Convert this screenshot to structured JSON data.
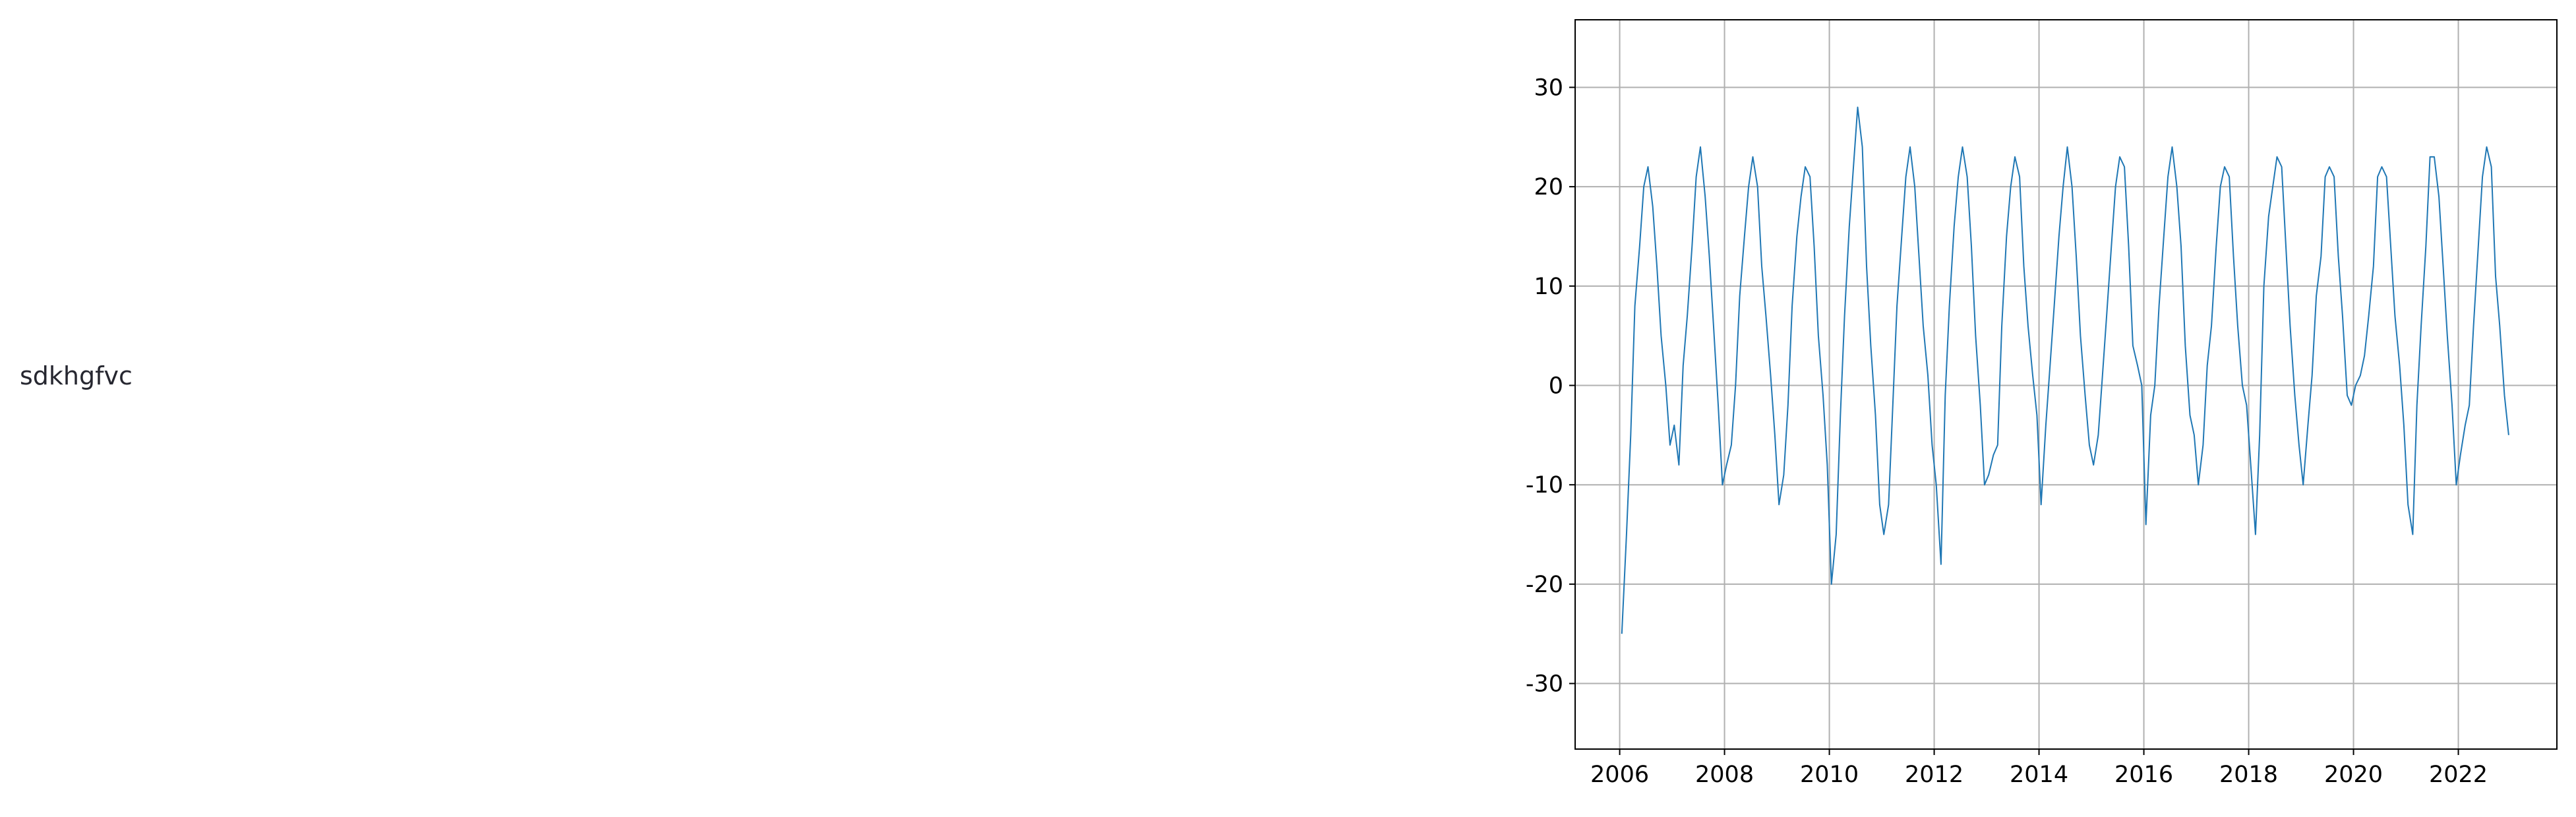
{
  "text": "sdkhgfvc",
  "chart_data": {
    "type": "line",
    "x": [
      2006.04,
      2006.13,
      2006.21,
      2006.29,
      2006.38,
      2006.46,
      2006.54,
      2006.63,
      2006.71,
      2006.79,
      2006.88,
      2006.96,
      2007.04,
      2007.13,
      2007.21,
      2007.29,
      2007.38,
      2007.46,
      2007.54,
      2007.63,
      2007.71,
      2007.79,
      2007.88,
      2007.96,
      2008.04,
      2008.13,
      2008.21,
      2008.29,
      2008.38,
      2008.46,
      2008.54,
      2008.63,
      2008.71,
      2008.79,
      2008.88,
      2008.96,
      2009.04,
      2009.13,
      2009.21,
      2009.29,
      2009.38,
      2009.46,
      2009.54,
      2009.63,
      2009.71,
      2009.79,
      2009.88,
      2009.96,
      2010.04,
      2010.13,
      2010.21,
      2010.29,
      2010.38,
      2010.46,
      2010.54,
      2010.63,
      2010.71,
      2010.79,
      2010.88,
      2010.96,
      2011.04,
      2011.13,
      2011.21,
      2011.29,
      2011.38,
      2011.46,
      2011.54,
      2011.63,
      2011.71,
      2011.79,
      2011.88,
      2011.96,
      2012.04,
      2012.13,
      2012.21,
      2012.29,
      2012.38,
      2012.46,
      2012.54,
      2012.63,
      2012.71,
      2012.79,
      2012.88,
      2012.96,
      2013.04,
      2013.13,
      2013.21,
      2013.29,
      2013.38,
      2013.46,
      2013.54,
      2013.63,
      2013.71,
      2013.79,
      2013.88,
      2013.96,
      2014.04,
      2014.13,
      2014.21,
      2014.29,
      2014.38,
      2014.46,
      2014.54,
      2014.63,
      2014.71,
      2014.79,
      2014.88,
      2014.96,
      2015.04,
      2015.13,
      2015.21,
      2015.29,
      2015.38,
      2015.46,
      2015.54,
      2015.63,
      2015.71,
      2015.79,
      2015.88,
      2015.96,
      2016.04,
      2016.13,
      2016.21,
      2016.29,
      2016.38,
      2016.46,
      2016.54,
      2016.63,
      2016.71,
      2016.79,
      2016.88,
      2016.96,
      2017.04,
      2017.13,
      2017.21,
      2017.29,
      2017.38,
      2017.46,
      2017.54,
      2017.63,
      2017.71,
      2017.79,
      2017.88,
      2017.96,
      2018.04,
      2018.13,
      2018.21,
      2018.29,
      2018.38,
      2018.46,
      2018.54,
      2018.63,
      2018.71,
      2018.79,
      2018.88,
      2018.96,
      2019.04,
      2019.13,
      2019.21,
      2019.29,
      2019.38,
      2019.46,
      2019.54,
      2019.63,
      2019.71,
      2019.79,
      2019.88,
      2019.96,
      2020.04,
      2020.13,
      2020.21,
      2020.29,
      2020.38,
      2020.46,
      2020.54,
      2020.63,
      2020.71,
      2020.79,
      2020.88,
      2020.96,
      2021.04,
      2021.13,
      2021.21,
      2021.29,
      2021.38,
      2021.46,
      2021.54,
      2021.63,
      2021.71,
      2021.79,
      2021.88,
      2021.96,
      2022.04,
      2022.13,
      2022.21,
      2022.29,
      2022.38,
      2022.46,
      2022.54,
      2022.63,
      2022.71,
      2022.79,
      2022.88,
      2022.96
    ],
    "series": [
      {
        "color": "#1f77b4",
        "values": [
          -25,
          -15,
          -5,
          8,
          14,
          20,
          22,
          18,
          12,
          5,
          0,
          -6,
          -4,
          -8,
          2,
          7,
          14,
          21,
          24,
          19,
          13,
          6,
          -2,
          -10,
          -8,
          -6,
          0,
          9,
          15,
          20,
          23,
          20,
          12,
          7,
          1,
          -5,
          -12,
          -9,
          -2,
          8,
          15,
          19,
          22,
          21,
          14,
          5,
          -1,
          -8,
          -20,
          -15,
          -3,
          7,
          16,
          22,
          28,
          24,
          12,
          4,
          -3,
          -12,
          -15,
          -12,
          -2,
          8,
          15,
          21,
          24,
          20,
          13,
          6,
          1,
          -6,
          -10,
          -18,
          -1,
          8,
          16,
          21,
          24,
          21,
          14,
          5,
          -2,
          -10,
          -9,
          -7,
          -6,
          6,
          15,
          20,
          23,
          21,
          12,
          6,
          1,
          -3,
          -12,
          -4,
          2,
          8,
          15,
          20,
          24,
          20,
          13,
          5,
          -1,
          -6,
          -8,
          -5,
          1,
          7,
          14,
          20,
          23,
          22,
          14,
          4,
          2,
          0,
          -14,
          -3,
          0,
          8,
          15,
          21,
          24,
          20,
          14,
          4,
          -3,
          -5,
          -10,
          -6,
          2,
          6,
          14,
          20,
          22,
          21,
          13,
          6,
          0,
          -2,
          -8,
          -15,
          -5,
          10,
          17,
          20,
          23,
          22,
          14,
          6,
          -1,
          -6,
          -10,
          -4,
          1,
          9,
          13,
          21,
          22,
          21,
          13,
          7,
          -1,
          -2,
          0,
          1,
          3,
          7,
          12,
          21,
          22,
          21,
          14,
          7,
          2,
          -4,
          -12,
          -15,
          -2,
          6,
          14,
          23,
          23,
          19,
          12,
          5,
          -2,
          -10,
          -7,
          -4,
          -2,
          6,
          14,
          21,
          24,
          22,
          11,
          6,
          -1,
          -5
        ]
      }
    ],
    "xlim": [
      2005.15,
      2023.88
    ],
    "xticks": [
      2006,
      2008,
      2010,
      2012,
      2014,
      2016,
      2018,
      2020,
      2022
    ],
    "ylim": [
      -36.6,
      36.8
    ],
    "yticks": [
      -30,
      -20,
      -10,
      0,
      10,
      20,
      30
    ],
    "grid": true
  }
}
